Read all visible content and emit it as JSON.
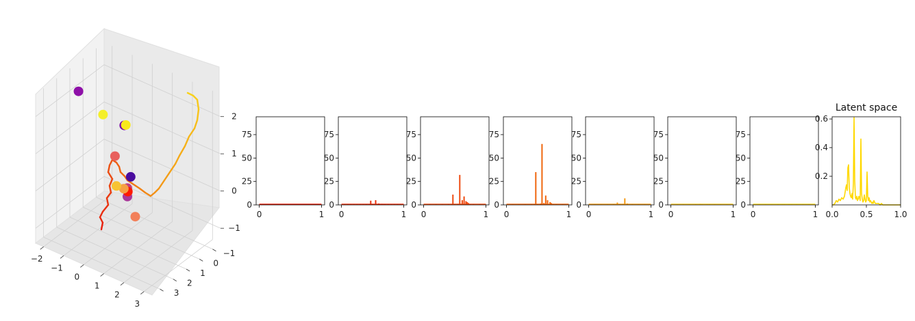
{
  "chart_data": [
    {
      "type": "scatter3d",
      "title": "",
      "x_ticks": [
        -2,
        -1,
        0,
        1,
        2,
        3
      ],
      "y_ticks": [
        -1,
        0,
        1,
        2,
        3
      ],
      "z_ticks": [
        -1,
        0,
        1,
        2
      ],
      "xlim": [
        -2.4,
        3.4
      ],
      "ylim": [
        -1.6,
        3.6
      ],
      "zlim": [
        -1.4,
        2.6
      ],
      "grid": true,
      "points": [
        {
          "x": -2.1,
          "y": 0.8,
          "z": 2.0,
          "color": "#8e10a8"
        },
        {
          "x": 0.9,
          "y": 1.9,
          "z": 2.1,
          "color": "#7c08a6"
        },
        {
          "x": -1.6,
          "y": -0.3,
          "z": 1.2,
          "color": "#f4ef2a"
        },
        {
          "x": -1.2,
          "y": -0.6,
          "z": 0.1,
          "color": "#e8605e"
        },
        {
          "x": 0.3,
          "y": 0.5,
          "z": 0.2,
          "color": "#4a0c9e"
        },
        {
          "x": 0.2,
          "y": 0.6,
          "z": -0.1,
          "color": "#c04082"
        },
        {
          "x": 0.4,
          "y": 0.9,
          "z": -0.2,
          "color": "#a9379a"
        },
        {
          "x": -0.1,
          "y": 0.1,
          "z": -0.4,
          "color": "#ff1a00"
        },
        {
          "x": -0.5,
          "y": -0.2,
          "z": -0.5,
          "color": "#f6a043"
        },
        {
          "x": -1.0,
          "y": -0.4,
          "z": -0.6,
          "color": "#f7c333"
        },
        {
          "x": 0.4,
          "y": 0.3,
          "z": -0.9,
          "color": "#f2805a"
        },
        {
          "x": 1.7,
          "y": 3.0,
          "z": 2.6,
          "color": "#f8e81c"
        }
      ],
      "trajectory_color_start": "#e8200e",
      "trajectory_color_end": "#f8d21c"
    },
    {
      "type": "bar",
      "title": "",
      "x": [
        0.0,
        0.02,
        0.04,
        0.06,
        0.08,
        0.1,
        0.12,
        0.14,
        0.16,
        0.18,
        0.2,
        0.22,
        0.24,
        0.26,
        0.28,
        0.3,
        0.32,
        0.34,
        0.36,
        0.38,
        0.4,
        0.42,
        0.44,
        0.46,
        0.48,
        0.5,
        0.52,
        0.54,
        0.56,
        0.58,
        0.6,
        0.62,
        0.64,
        0.66,
        0.68,
        0.7,
        0.72,
        0.74,
        0.76,
        0.78,
        0.8,
        0.82,
        0.84,
        0.86,
        0.88,
        0.9,
        0.92,
        0.94,
        0.96,
        0.98,
        1.0
      ],
      "values": [
        0.3,
        0.3,
        0.3,
        0.3,
        0.3,
        0.3,
        0.3,
        0.3,
        0.3,
        0.3,
        0.3,
        0.3,
        0.3,
        0.3,
        0.3,
        0.3,
        0.3,
        0.3,
        0.3,
        0.3,
        0.3,
        0.3,
        0.3,
        0.3,
        0.3,
        0.3,
        0.3,
        0.3,
        0.3,
        0.3,
        0.3,
        0.3,
        0.3,
        0.3,
        0.3,
        0.3,
        0.3,
        0.3,
        0.3,
        0.3,
        0.3,
        0.3,
        0.3,
        0.3,
        0.3,
        0.3,
        0.3,
        0.3,
        0.3,
        0.3,
        0.3
      ],
      "xlim": [
        -0.05,
        1.05
      ],
      "ylim": [
        0,
        94
      ],
      "x_ticks": [
        0,
        1
      ],
      "y_ticks": [
        0,
        25,
        50,
        75
      ],
      "color": "#e2200c"
    },
    {
      "type": "bar",
      "title": "",
      "x": [
        0.0,
        0.05,
        0.1,
        0.15,
        0.2,
        0.25,
        0.3,
        0.35,
        0.4,
        0.45,
        0.47,
        0.5,
        0.55,
        0.58,
        0.6,
        0.62,
        0.65,
        0.68,
        0.7,
        0.75,
        0.8,
        0.85,
        0.9,
        0.95,
        1.0
      ],
      "values": [
        0.3,
        0.3,
        0.3,
        0.3,
        0.3,
        0.3,
        0.3,
        0.3,
        0.4,
        0.5,
        4.5,
        0.6,
        5.0,
        0.8,
        1.5,
        1.0,
        1.2,
        0.8,
        1.0,
        0.6,
        0.4,
        0.3,
        0.3,
        0.3,
        0.3
      ],
      "xlim": [
        -0.05,
        1.05
      ],
      "ylim": [
        0,
        94
      ],
      "x_ticks": [
        0,
        1
      ],
      "y_ticks": [
        0,
        25,
        50,
        75
      ],
      "color": "#e8300e"
    },
    {
      "type": "bar",
      "title": "",
      "x": [
        0.0,
        0.1,
        0.2,
        0.3,
        0.4,
        0.45,
        0.47,
        0.5,
        0.55,
        0.58,
        0.62,
        0.65,
        0.68,
        0.7,
        0.72,
        0.75,
        0.8,
        0.9,
        1.0
      ],
      "values": [
        0.3,
        0.3,
        0.3,
        0.3,
        0.5,
        1.0,
        11.0,
        1.0,
        1.2,
        32.0,
        5.0,
        9.0,
        4.0,
        3.0,
        2.0,
        1.0,
        0.5,
        0.3,
        0.3
      ],
      "xlim": [
        -0.05,
        1.05
      ],
      "ylim": [
        0,
        94
      ],
      "x_ticks": [
        0,
        1
      ],
      "y_ticks": [
        0,
        25,
        50,
        75
      ],
      "color": "#ee4a10"
    },
    {
      "type": "bar",
      "title": "",
      "x": [
        0.0,
        0.1,
        0.2,
        0.3,
        0.4,
        0.45,
        0.47,
        0.5,
        0.55,
        0.57,
        0.6,
        0.63,
        0.66,
        0.7,
        0.72,
        0.75,
        0.8,
        0.9,
        1.0
      ],
      "values": [
        0.3,
        0.3,
        0.3,
        0.3,
        0.5,
        1.0,
        35.0,
        1.0,
        1.5,
        65.0,
        2.0,
        10.0,
        5.0,
        3.0,
        2.0,
        1.0,
        0.5,
        0.3,
        0.3
      ],
      "xlim": [
        -0.05,
        1.05
      ],
      "ylim": [
        0,
        94
      ],
      "x_ticks": [
        0,
        1
      ],
      "y_ticks": [
        0,
        25,
        50,
        75
      ],
      "color": "#f0660e"
    },
    {
      "type": "bar",
      "title": "",
      "x": [
        0.0,
        0.1,
        0.2,
        0.3,
        0.4,
        0.46,
        0.5,
        0.55,
        0.58,
        0.62,
        0.7,
        0.8,
        0.9,
        1.0
      ],
      "values": [
        0.3,
        0.3,
        0.3,
        0.3,
        0.5,
        2.5,
        0.6,
        0.8,
        7.0,
        1.5,
        0.5,
        0.3,
        0.3,
        0.3
      ],
      "xlim": [
        -0.05,
        1.05
      ],
      "ylim": [
        0,
        94
      ],
      "x_ticks": [
        0,
        1
      ],
      "y_ticks": [
        0,
        25,
        50,
        75
      ],
      "color": "#f49a14"
    },
    {
      "type": "bar",
      "title": "",
      "x": [
        0.0,
        0.1,
        0.2,
        0.3,
        0.4,
        0.47,
        0.5,
        0.58,
        0.62,
        0.7,
        0.8,
        0.9,
        1.0
      ],
      "values": [
        0.3,
        0.3,
        0.3,
        0.3,
        0.4,
        1.2,
        0.4,
        1.0,
        0.4,
        0.3,
        0.3,
        0.3,
        0.3
      ],
      "xlim": [
        -0.05,
        1.05
      ],
      "ylim": [
        0,
        94
      ],
      "x_ticks": [
        0,
        1
      ],
      "y_ticks": [
        0,
        25,
        50,
        75
      ],
      "color": "#f8c21a"
    },
    {
      "type": "bar",
      "title": "",
      "x": [
        0.0,
        0.1,
        0.2,
        0.3,
        0.4,
        0.47,
        0.5,
        0.58,
        0.62,
        0.7,
        0.8,
        0.9,
        1.0
      ],
      "values": [
        0.3,
        0.3,
        0.3,
        0.3,
        0.4,
        0.9,
        0.4,
        0.7,
        0.4,
        0.3,
        0.3,
        0.3,
        0.3
      ],
      "xlim": [
        -0.05,
        1.05
      ],
      "ylim": [
        0,
        94
      ],
      "x_ticks": [
        0,
        1
      ],
      "y_ticks": [
        0,
        25,
        50,
        75
      ],
      "color": "#f8d21c"
    },
    {
      "type": "line",
      "title": "Latent space",
      "x": [
        0.0,
        0.02,
        0.04,
        0.06,
        0.08,
        0.1,
        0.12,
        0.14,
        0.16,
        0.18,
        0.2,
        0.21,
        0.22,
        0.23,
        0.24,
        0.25,
        0.26,
        0.27,
        0.28,
        0.29,
        0.3,
        0.31,
        0.32,
        0.33,
        0.34,
        0.35,
        0.36,
        0.37,
        0.38,
        0.39,
        0.4,
        0.41,
        0.42,
        0.43,
        0.44,
        0.45,
        0.46,
        0.47,
        0.48,
        0.49,
        0.5,
        0.51,
        0.52,
        0.53,
        0.54,
        0.55,
        0.56,
        0.57,
        0.58,
        0.59,
        0.6,
        0.61,
        0.62,
        0.63,
        0.64,
        0.66,
        0.68,
        0.7,
        0.72,
        0.74,
        0.76,
        0.78,
        0.8,
        0.85,
        0.9,
        0.95,
        1.0
      ],
      "values": [
        0.0,
        0.0,
        0.01,
        0.03,
        0.02,
        0.04,
        0.03,
        0.05,
        0.04,
        0.06,
        0.12,
        0.14,
        0.1,
        0.26,
        0.28,
        0.12,
        0.08,
        0.06,
        0.05,
        0.08,
        0.04,
        0.15,
        0.61,
        0.17,
        0.05,
        0.04,
        0.06,
        0.03,
        0.04,
        0.06,
        0.05,
        0.03,
        0.46,
        0.08,
        0.04,
        0.02,
        0.03,
        0.07,
        0.04,
        0.02,
        0.03,
        0.23,
        0.06,
        0.03,
        0.05,
        0.02,
        0.03,
        0.02,
        0.01,
        0.02,
        0.01,
        0.03,
        0.02,
        0.01,
        0.01,
        0.01,
        0.01,
        0.0,
        0.01,
        0.0,
        0.0,
        0.0,
        0.0,
        0.0,
        0.0,
        0.0,
        0.0
      ],
      "xlim": [
        0.0,
        1.0
      ],
      "ylim": [
        0,
        0.615
      ],
      "x_ticks": [
        "0.0",
        "0.5",
        "1.0"
      ],
      "y_ticks": [
        "0.2",
        "0.4",
        "0.6"
      ],
      "color": "#ffd800"
    }
  ]
}
